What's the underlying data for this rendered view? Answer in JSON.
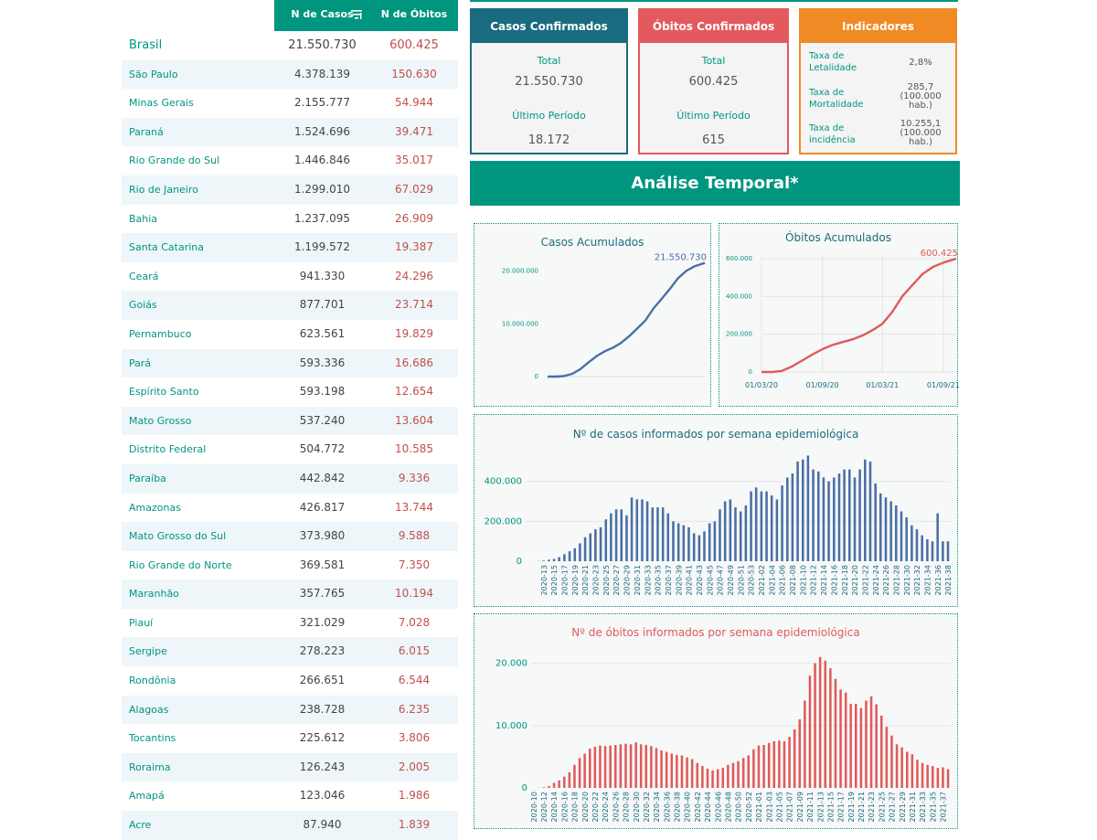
{
  "table": {
    "col_cases": "N de Casos",
    "col_deaths": "N de Óbitos",
    "rows": [
      {
        "state": "Brasil",
        "cases": "21.550.730",
        "deaths": "600.425"
      },
      {
        "state": "São Paulo",
        "cases": "4.378.139",
        "deaths": "150.630"
      },
      {
        "state": "Minas Gerais",
        "cases": "2.155.777",
        "deaths": "54.944"
      },
      {
        "state": "Paraná",
        "cases": "1.524.696",
        "deaths": "39.471"
      },
      {
        "state": "Rio Grande do Sul",
        "cases": "1.446.846",
        "deaths": "35.017"
      },
      {
        "state": "Rio de Janeiro",
        "cases": "1.299.010",
        "deaths": "67.029"
      },
      {
        "state": "Bahia",
        "cases": "1.237.095",
        "deaths": "26.909"
      },
      {
        "state": "Santa Catarina",
        "cases": "1.199.572",
        "deaths": "19.387"
      },
      {
        "state": "Ceará",
        "cases": "941.330",
        "deaths": "24.296"
      },
      {
        "state": "Goiás",
        "cases": "877.701",
        "deaths": "23.714"
      },
      {
        "state": "Pernambuco",
        "cases": "623.561",
        "deaths": "19.829"
      },
      {
        "state": "Pará",
        "cases": "593.336",
        "deaths": "16.686"
      },
      {
        "state": "Espírito Santo",
        "cases": "593.198",
        "deaths": "12.654"
      },
      {
        "state": "Mato Grosso",
        "cases": "537.240",
        "deaths": "13.604"
      },
      {
        "state": "Distrito Federal",
        "cases": "504.772",
        "deaths": "10.585"
      },
      {
        "state": "Paraíba",
        "cases": "442.842",
        "deaths": "9.336"
      },
      {
        "state": "Amazonas",
        "cases": "426.817",
        "deaths": "13.744"
      },
      {
        "state": "Mato Grosso do Sul",
        "cases": "373.980",
        "deaths": "9.588"
      },
      {
        "state": "Rio Grande do Norte",
        "cases": "369.581",
        "deaths": "7.350"
      },
      {
        "state": "Maranhão",
        "cases": "357.765",
        "deaths": "10.194"
      },
      {
        "state": "Piauí",
        "cases": "321.029",
        "deaths": "7.028"
      },
      {
        "state": "Sergipe",
        "cases": "278.223",
        "deaths": "6.015"
      },
      {
        "state": "Rondônia",
        "cases": "266.651",
        "deaths": "6.544"
      },
      {
        "state": "Alagoas",
        "cases": "238.728",
        "deaths": "6.235"
      },
      {
        "state": "Tocantins",
        "cases": "225.612",
        "deaths": "3.806"
      },
      {
        "state": "Roraima",
        "cases": "126.243",
        "deaths": "2.005"
      },
      {
        "state": "Amapá",
        "cases": "123.046",
        "deaths": "1.986"
      },
      {
        "state": "Acre",
        "cases": "87.940",
        "deaths": "1.839"
      }
    ]
  },
  "cards": {
    "cases": {
      "title": "Casos Confirmados",
      "total_label": "Total",
      "total": "21.550.730",
      "period_label": "Último Período",
      "period": "18.172"
    },
    "deaths": {
      "title": "Óbitos Confirmados",
      "total_label": "Total",
      "total": "600.425",
      "period_label": "Último Período",
      "period": "615"
    },
    "indicators": {
      "title": "Indicadores",
      "items": [
        {
          "name": "Taxa de Letalidade",
          "value": "2,8%"
        },
        {
          "name": "Taxa de Mortalidade",
          "value": "285,7 (100.000 hab.)"
        },
        {
          "name": "Taxa de incidência",
          "value": "10.255,1 (100.000 hab.)"
        }
      ]
    }
  },
  "banner": "Análise Temporal*",
  "colors": {
    "teal": "#00957f",
    "blue": "#4a6fa5",
    "red": "#e05a5a",
    "orange": "#f08a24"
  },
  "chart_data": [
    {
      "id": "cum_cases",
      "type": "line",
      "title": "Casos Acumulados",
      "ylim": [
        0,
        22000000
      ],
      "yticks": [
        0,
        10000000,
        20000000
      ],
      "ytick_labels": [
        "0",
        "10.000.000",
        "20.000.000"
      ],
      "end_label": "21.550.730",
      "x_range": [
        "2020-03-01",
        "2021-10-10"
      ],
      "series": [
        {
          "x": [
            "2020-03-01",
            "2020-04-01",
            "2020-05-01",
            "2020-06-01",
            "2020-07-01",
            "2020-08-01",
            "2020-09-01",
            "2020-10-01",
            "2020-11-01",
            "2020-12-01",
            "2021-01-01",
            "2021-02-01",
            "2021-03-01",
            "2021-04-01",
            "2021-05-01",
            "2021-06-01",
            "2021-07-01",
            "2021-08-01",
            "2021-09-01",
            "2021-10-10"
          ],
          "y": [
            2000,
            6000,
            90000,
            520000,
            1400000,
            2700000,
            3900000,
            4800000,
            5500000,
            6400000,
            7700000,
            9200000,
            10600000,
            12900000,
            14700000,
            16600000,
            18600000,
            20000000,
            20900000,
            21550730
          ]
        }
      ]
    },
    {
      "id": "cum_deaths",
      "type": "line",
      "title": "Óbitos Acumulados",
      "ylim": [
        0,
        620000
      ],
      "yticks": [
        0,
        200000,
        400000,
        600000
      ],
      "ytick_labels": [
        "0",
        "200.000",
        "400.000",
        "600.000"
      ],
      "xtick_labels": [
        "01/03/20",
        "01/09/20",
        "01/03/21",
        "01/09/21"
      ],
      "xtick_dates": [
        "2020-03-01",
        "2020-09-01",
        "2021-03-01",
        "2021-09-01"
      ],
      "end_label": "600.425",
      "x_range": [
        "2020-03-01",
        "2021-10-10"
      ],
      "series": [
        {
          "x": [
            "2020-03-01",
            "2020-04-01",
            "2020-05-01",
            "2020-06-01",
            "2020-07-01",
            "2020-08-01",
            "2020-09-01",
            "2020-10-01",
            "2020-11-01",
            "2020-12-01",
            "2021-01-01",
            "2021-02-01",
            "2021-03-01",
            "2021-04-01",
            "2021-05-01",
            "2021-06-01",
            "2021-07-01",
            "2021-08-01",
            "2021-09-01",
            "2021-10-10"
          ],
          "y": [
            0,
            200,
            6000,
            29000,
            60000,
            92000,
            121000,
            143000,
            159000,
            173000,
            194000,
            224000,
            255000,
            321000,
            403000,
            463000,
            520000,
            557000,
            580000,
            600425
          ]
        }
      ]
    },
    {
      "id": "weekly_cases",
      "type": "bar",
      "title": "Nº de casos informados por semana epidemiológica",
      "ylim": [
        0,
        550000
      ],
      "yticks": [
        0,
        200000,
        400000
      ],
      "ytick_labels": [
        "0",
        "200.000",
        "400.000"
      ],
      "categories": [
        "2020-10",
        "2020-11",
        "2020-12",
        "2020-13",
        "2020-14",
        "2020-15",
        "2020-16",
        "2020-17",
        "2020-18",
        "2020-19",
        "2020-20",
        "2020-21",
        "2020-22",
        "2020-23",
        "2020-24",
        "2020-25",
        "2020-26",
        "2020-27",
        "2020-28",
        "2020-29",
        "2020-30",
        "2020-31",
        "2020-32",
        "2020-33",
        "2020-34",
        "2020-35",
        "2020-36",
        "2020-37",
        "2020-38",
        "2020-39",
        "2020-40",
        "2020-41",
        "2020-42",
        "2020-43",
        "2020-44",
        "2020-45",
        "2020-46",
        "2020-47",
        "2020-48",
        "2020-49",
        "2020-50",
        "2020-51",
        "2020-52",
        "2020-53",
        "2021-01",
        "2021-02",
        "2021-03",
        "2021-04",
        "2021-05",
        "2021-06",
        "2021-07",
        "2021-08",
        "2021-09",
        "2021-10",
        "2021-11",
        "2021-12",
        "2021-13",
        "2021-14",
        "2021-15",
        "2021-16",
        "2021-17",
        "2021-18",
        "2021-19",
        "2021-20",
        "2021-21",
        "2021-22",
        "2021-23",
        "2021-24",
        "2021-25",
        "2021-26",
        "2021-27",
        "2021-28",
        "2021-29",
        "2021-30",
        "2021-31",
        "2021-32",
        "2021-33",
        "2021-34",
        "2021-35",
        "2021-36",
        "2021-37",
        "2021-38"
      ],
      "tick_every": 2,
      "tick_offset": 3,
      "values": [
        100,
        300,
        1000,
        3000,
        8000,
        12000,
        20000,
        35000,
        50000,
        65000,
        90000,
        120000,
        140000,
        160000,
        170000,
        210000,
        240000,
        260000,
        260000,
        230000,
        320000,
        310000,
        310000,
        300000,
        270000,
        270000,
        270000,
        240000,
        200000,
        190000,
        180000,
        170000,
        140000,
        130000,
        150000,
        190000,
        200000,
        260000,
        300000,
        310000,
        270000,
        250000,
        280000,
        350000,
        370000,
        350000,
        350000,
        330000,
        310000,
        380000,
        420000,
        440000,
        500000,
        510000,
        530000,
        460000,
        450000,
        420000,
        400000,
        420000,
        440000,
        460000,
        460000,
        420000,
        460000,
        510000,
        500000,
        390000,
        340000,
        320000,
        300000,
        280000,
        250000,
        220000,
        180000,
        160000,
        130000,
        110000,
        100000,
        240000,
        100000,
        100000
      ]
    },
    {
      "id": "weekly_deaths",
      "type": "bar",
      "title": "Nº de óbitos informados por semana epidemiológica",
      "ylim": [
        0,
        22000
      ],
      "yticks": [
        0,
        10000,
        20000
      ],
      "ytick_labels": [
        "0",
        "10.000",
        "20.000"
      ],
      "categories": [
        "2020-10",
        "2020-11",
        "2020-12",
        "2020-13",
        "2020-14",
        "2020-15",
        "2020-16",
        "2020-17",
        "2020-18",
        "2020-19",
        "2020-20",
        "2020-21",
        "2020-22",
        "2020-23",
        "2020-24",
        "2020-25",
        "2020-26",
        "2020-27",
        "2020-28",
        "2020-29",
        "2020-30",
        "2020-31",
        "2020-32",
        "2020-33",
        "2020-34",
        "2020-35",
        "2020-36",
        "2020-37",
        "2020-38",
        "2020-39",
        "2020-40",
        "2020-41",
        "2020-42",
        "2020-43",
        "2020-44",
        "2020-45",
        "2020-46",
        "2020-47",
        "2020-48",
        "2020-49",
        "2020-50",
        "2020-51",
        "2020-52",
        "2020-53",
        "2021-01",
        "2021-02",
        "2021-03",
        "2021-04",
        "2021-05",
        "2021-06",
        "2021-07",
        "2021-08",
        "2021-09",
        "2021-10",
        "2021-11",
        "2021-12",
        "2021-13",
        "2021-14",
        "2021-15",
        "2021-16",
        "2021-17",
        "2021-18",
        "2021-19",
        "2021-20",
        "2021-21",
        "2021-22",
        "2021-23",
        "2021-24",
        "2021-25",
        "2021-26",
        "2021-27",
        "2021-28",
        "2021-29",
        "2021-30",
        "2021-31",
        "2021-32",
        "2021-33",
        "2021-34",
        "2021-35",
        "2021-36",
        "2021-37",
        "2021-38"
      ],
      "tick_every": 2,
      "tick_offset": 0,
      "values": [
        5,
        20,
        100,
        300,
        800,
        1200,
        1800,
        2500,
        3700,
        4800,
        5500,
        6300,
        6600,
        6800,
        6700,
        6800,
        6900,
        7000,
        7100,
        7000,
        7300,
        7000,
        6900,
        6700,
        6400,
        6000,
        5800,
        5500,
        5300,
        5200,
        4900,
        4600,
        4000,
        3500,
        3100,
        2800,
        3000,
        3200,
        3700,
        4000,
        4300,
        4800,
        5200,
        6200,
        6800,
        6900,
        7200,
        7500,
        7600,
        7500,
        8200,
        9400,
        11000,
        14000,
        18000,
        20000,
        21000,
        20400,
        19200,
        17500,
        15800,
        15300,
        13500,
        13500,
        12800,
        14000,
        14700,
        13400,
        11600,
        9800,
        8400,
        7000,
        6500,
        5800,
        5400,
        4500,
        4000,
        3700,
        3500,
        3200,
        3300,
        3000
      ]
    }
  ]
}
